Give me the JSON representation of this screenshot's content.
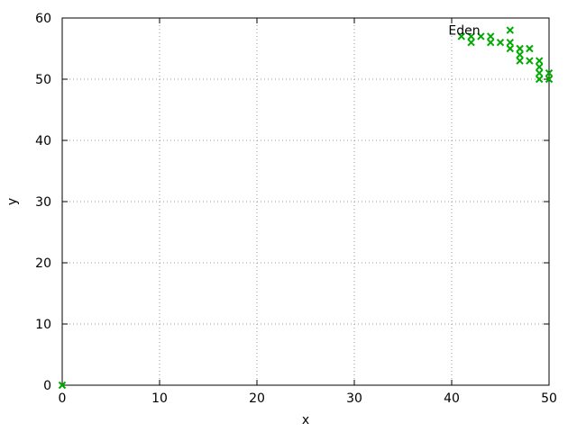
{
  "chart_data": {
    "type": "scatter",
    "xlabel": "x",
    "ylabel": "y",
    "xlim": [
      0,
      50
    ],
    "ylim": [
      0,
      60
    ],
    "xticks": [
      0,
      10,
      20,
      30,
      40,
      50
    ],
    "yticks": [
      0,
      10,
      20,
      30,
      40,
      50,
      60
    ],
    "grid": true,
    "grid_style": "dotted",
    "marker": "x",
    "color": "#00aa00",
    "annotation": {
      "text": "Eden",
      "x": 41.3,
      "y": 57.3
    },
    "series": [
      {
        "points": [
          [
            0,
            0
          ],
          [
            41,
            57
          ],
          [
            42,
            57
          ],
          [
            42,
            56
          ],
          [
            43,
            57
          ],
          [
            44,
            57
          ],
          [
            44,
            56
          ],
          [
            45,
            56
          ],
          [
            46,
            58
          ],
          [
            46,
            56
          ],
          [
            46,
            55
          ],
          [
            47,
            55
          ],
          [
            47,
            54
          ],
          [
            47,
            53
          ],
          [
            48,
            55
          ],
          [
            48,
            53
          ],
          [
            49,
            53
          ],
          [
            49,
            52
          ],
          [
            49,
            51
          ],
          [
            49,
            50
          ],
          [
            50,
            51
          ],
          [
            50,
            50
          ]
        ]
      }
    ]
  }
}
